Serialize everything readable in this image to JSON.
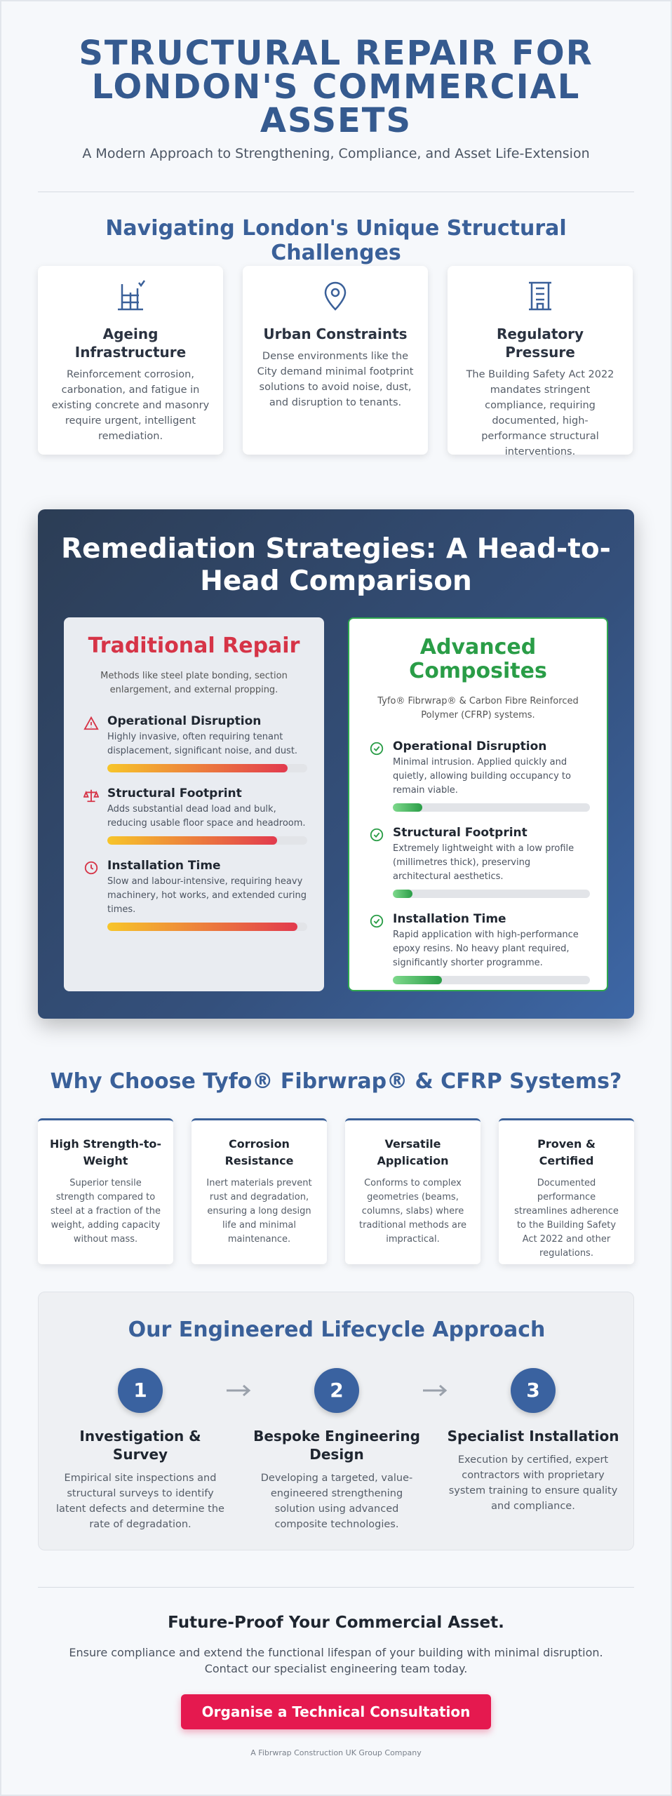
{
  "header": {
    "title": "STRUCTURAL REPAIR FOR LONDON'S COMMERCIAL ASSETS",
    "subtitle": "A Modern Approach to Strengthening, Compliance, and Asset Life-Extension"
  },
  "challenges": {
    "heading": "Navigating London's Unique Structural Challenges",
    "cards": [
      {
        "title": "Ageing Infrastructure",
        "text": "Reinforcement corrosion, carbonation, and fatigue in existing concrete and masonry require urgent, intelligent remediation."
      },
      {
        "title": "Urban Constraints",
        "text": "Dense environments like the City demand minimal footprint solutions to avoid noise, dust, and disruption to tenants."
      },
      {
        "title": "Regulatory Pressure",
        "text": "The Building Safety Act 2022 mandates stringent compliance, requiring documented, high-performance structural interventions."
      }
    ]
  },
  "comparison": {
    "heading": "Remediation Strategies: A Head-to-Head Comparison",
    "bar_range": [
      0,
      100
    ],
    "traditional": {
      "title": "Traditional Repair",
      "intro": "Methods like steel plate bonding, section enlargement, and external propping.",
      "items": [
        {
          "title": "Operational Disruption",
          "text": "Highly invasive, often requiring tenant displacement, significant noise, and dust.",
          "score": 90
        },
        {
          "title": "Structural Footprint",
          "text": "Adds substantial dead load and bulk, reducing usable floor space and headroom.",
          "score": 85
        },
        {
          "title": "Installation Time",
          "text": "Slow and labour-intensive, requiring heavy machinery, hot works, and extended curing times.",
          "score": 95
        }
      ]
    },
    "advanced": {
      "title": "Advanced Composites",
      "intro": "Tyfo® Fibrwrap® & Carbon Fibre Reinforced Polymer (CFRP) systems.",
      "items": [
        {
          "title": "Operational Disruption",
          "text": "Minimal intrusion. Applied quickly and quietly, allowing building occupancy to remain viable.",
          "score": 15
        },
        {
          "title": "Structural Footprint",
          "text": "Extremely lightweight with a low profile (millimetres thick), preserving architectural aesthetics.",
          "score": 10
        },
        {
          "title": "Installation Time",
          "text": "Rapid application with high-performance epoxy resins. No heavy plant required, significantly shorter programme.",
          "score": 25
        }
      ]
    }
  },
  "benefits": {
    "heading": "Why Choose Tyfo® Fibrwrap® & CFRP Systems?",
    "cards": [
      {
        "title": "High Strength-to-Weight",
        "text": "Superior tensile strength compared to steel at a fraction of the weight, adding capacity without mass."
      },
      {
        "title": "Corrosion Resistance",
        "text": "Inert materials prevent rust and degradation, ensuring a long design life and minimal maintenance."
      },
      {
        "title": "Versatile Application",
        "text": "Conforms to complex geometries (beams, columns, slabs) where traditional methods are impractical."
      },
      {
        "title": "Proven & Certified",
        "text": "Documented performance streamlines adherence to the Building Safety Act 2022 and other regulations."
      }
    ]
  },
  "lifecycle": {
    "heading": "Our Engineered Lifecycle Approach",
    "steps": [
      {
        "number": 1,
        "title": "Investigation & Survey",
        "text": "Empirical site inspections and structural surveys to identify latent defects and determine the rate of degradation."
      },
      {
        "number": 2,
        "title": "Bespoke Engineering Design",
        "text": "Developing a targeted, value-engineered strengthening solution using advanced composite technologies."
      },
      {
        "number": 3,
        "title": "Specialist Installation",
        "text": "Execution by certified, expert contractors with proprietary system training to ensure quality and compliance."
      }
    ]
  },
  "cta": {
    "heading": "Future-Proof Your Commercial Asset.",
    "text": "Ensure compliance and extend the functional lifespan of your building with minimal disruption. Contact our specialist engineering team today.",
    "button": "Organise a Technical Consultation",
    "footer": "A Fibrwrap Construction UK Group Company"
  }
}
